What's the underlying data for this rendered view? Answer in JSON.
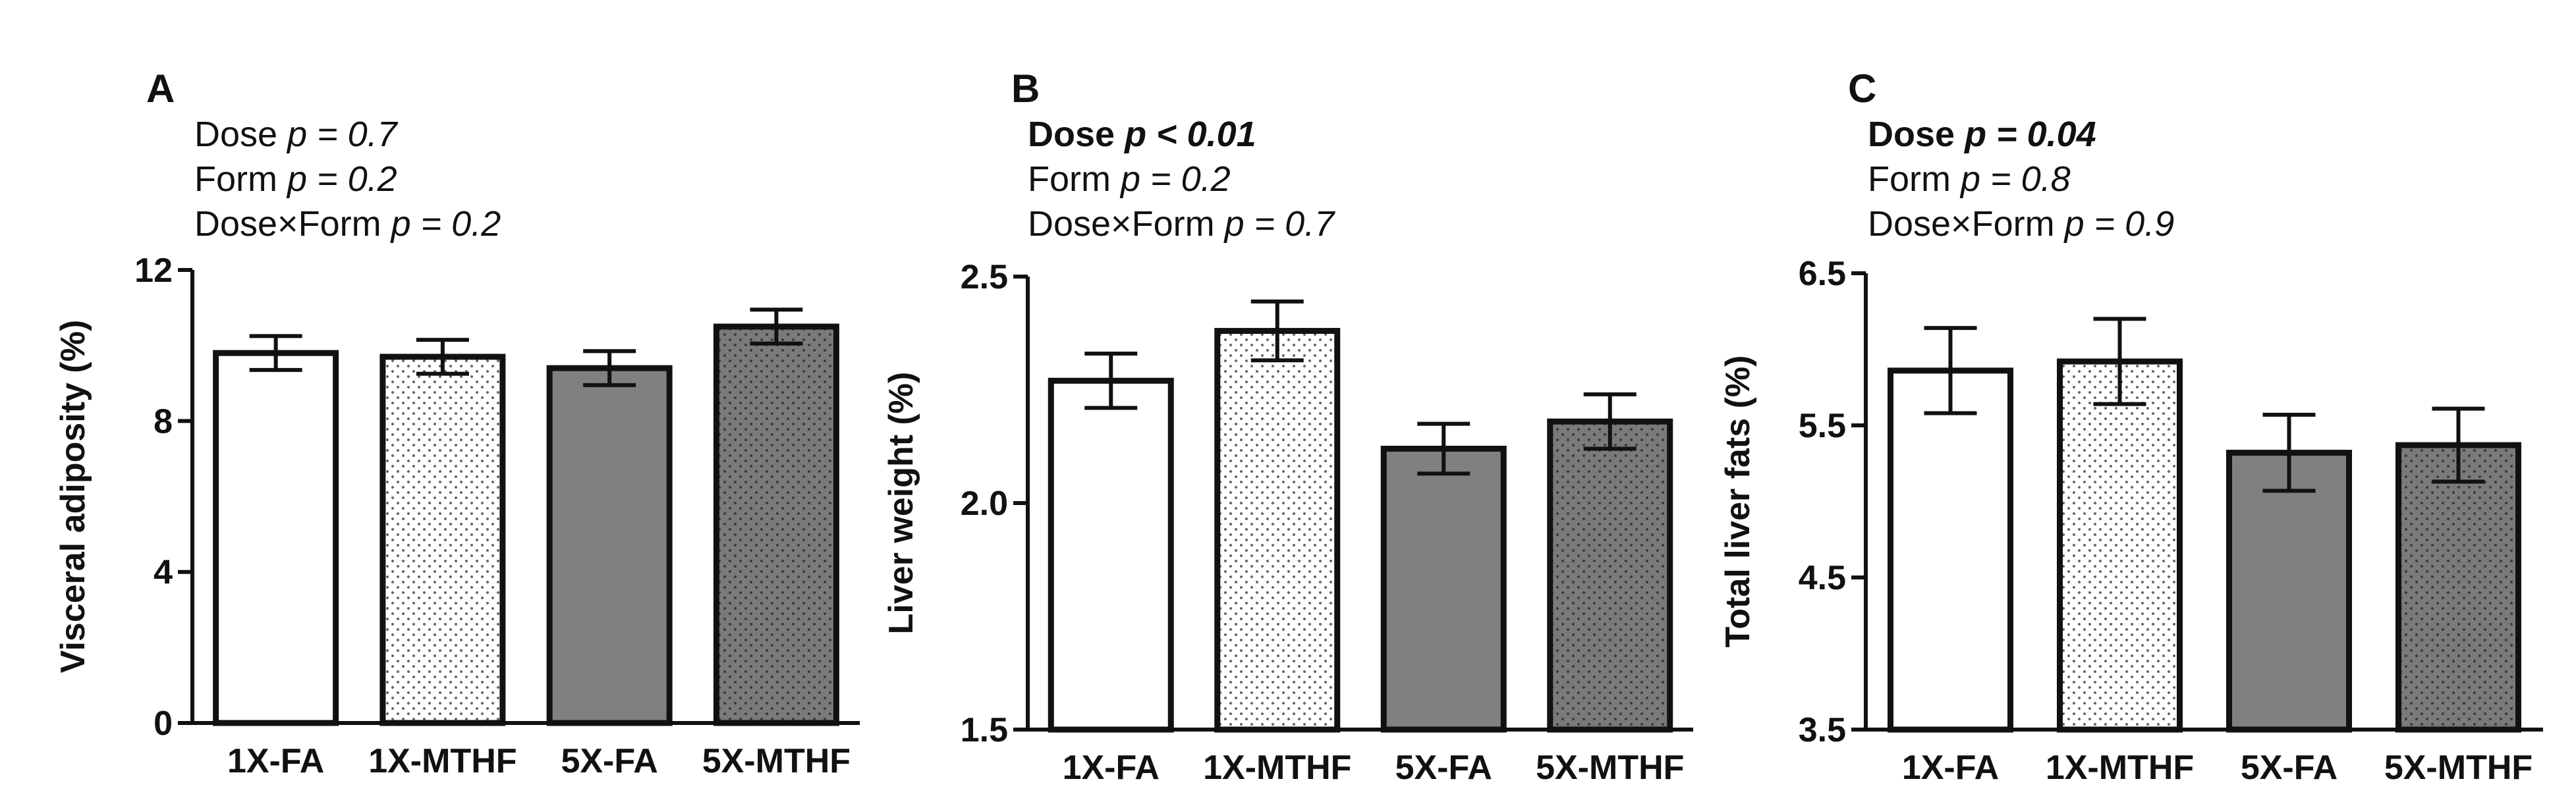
{
  "chart_data": [
    {
      "panel": "A",
      "type": "bar",
      "categories": [
        "1X-FA",
        "1X-MTHF",
        "5X-FA",
        "5X-MTHF"
      ],
      "values": [
        9.8,
        9.7,
        9.4,
        10.5
      ],
      "errors": [
        0.45,
        0.45,
        0.45,
        0.45
      ],
      "ylabel": "Visceral adiposity (%)",
      "ylim": [
        0,
        12
      ],
      "yticks": [
        0,
        4,
        8,
        12
      ],
      "ytick_labels": [
        "0",
        "4",
        "8",
        "12"
      ],
      "stats": [
        {
          "label": "Dose",
          "p": "p = 0.7",
          "bold": false
        },
        {
          "label": "Form",
          "p": "p = 0.2",
          "bold": false
        },
        {
          "label": "Dose×Form",
          "p": "p = 0.2",
          "bold": false
        }
      ]
    },
    {
      "panel": "B",
      "type": "bar",
      "categories": [
        "1X-FA",
        "1X-MTHF",
        "5X-FA",
        "5X-MTHF"
      ],
      "values": [
        2.27,
        2.38,
        2.12,
        2.18
      ],
      "errors": [
        0.06,
        0.065,
        0.055,
        0.06
      ],
      "ylabel": "Liver weight (%)",
      "ylim": [
        1.5,
        2.5
      ],
      "yticks": [
        1.5,
        2.0,
        2.5
      ],
      "ytick_labels": [
        "1.5",
        "2.0",
        "2.5"
      ],
      "stats": [
        {
          "label": "Dose",
          "p": "p < 0.01",
          "bold": true
        },
        {
          "label": "Form",
          "p": "p = 0.2",
          "bold": false
        },
        {
          "label": "Dose×Form",
          "p": "p = 0.7",
          "bold": false
        }
      ]
    },
    {
      "panel": "C",
      "type": "bar",
      "categories": [
        "1X-FA",
        "1X-MTHF",
        "5X-FA",
        "5X-MTHF"
      ],
      "values": [
        5.86,
        5.92,
        5.32,
        5.37
      ],
      "errors": [
        0.28,
        0.28,
        0.25,
        0.24
      ],
      "ylabel": "Total liver fats (%)",
      "ylim": [
        3.5,
        6.5
      ],
      "yticks": [
        3.5,
        4.5,
        5.5,
        6.5
      ],
      "ytick_labels": [
        "3.5",
        "4.5",
        "5.5",
        "6.5"
      ],
      "stats": [
        {
          "label": "Dose",
          "p": "p = 0.04",
          "bold": true
        },
        {
          "label": "Form",
          "p": "p = 0.8",
          "bold": false
        },
        {
          "label": "Dose×Form",
          "p": "p = 0.9",
          "bold": false
        }
      ]
    }
  ],
  "bar_styles": [
    {
      "fill": "#ffffff",
      "pattern": "none"
    },
    {
      "fill": "#ffffff",
      "pattern": "dots"
    },
    {
      "fill": "#808080",
      "pattern": "none"
    },
    {
      "fill": "#808080",
      "pattern": "dots"
    }
  ],
  "colors": {
    "axis": "#111111",
    "dot": "#555555",
    "dark_dot": "#333333"
  }
}
